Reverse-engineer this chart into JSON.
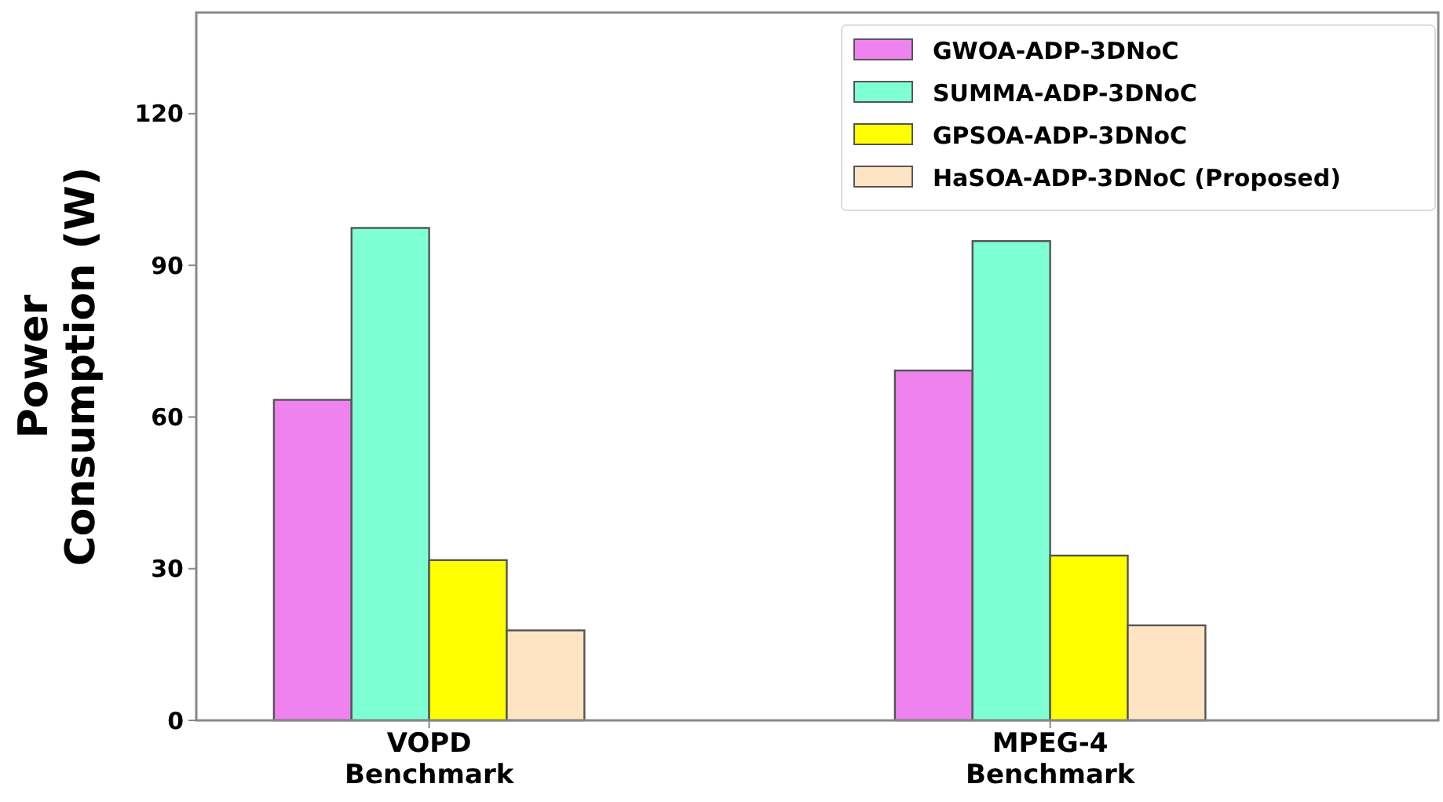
{
  "chart_data": {
    "type": "bar",
    "ylabel": "Power\nConsumption (W)",
    "categories": [
      "VOPD\nBenchmark",
      "MPEG-4\nBenchmark"
    ],
    "series": [
      {
        "name": "GWOA-ADP-3DNoC",
        "color": "#ee82ee",
        "values": [
          63.4,
          69.2
        ]
      },
      {
        "name": "SUMMA-ADP-3DNoC",
        "color": "#7fffd4",
        "values": [
          97.4,
          94.8
        ]
      },
      {
        "name": "GPSOA-ADP-3DNoC",
        "color": "#ffff00",
        "values": [
          31.7,
          32.6
        ]
      },
      {
        "name": "HaSOA-ADP-3DNoC (Proposed)",
        "color": "#ffe4c4",
        "values": [
          17.8,
          18.8
        ]
      }
    ],
    "ylim": [
      0,
      140
    ],
    "yticks": [
      0,
      30,
      60,
      90,
      120
    ],
    "grid": false,
    "legend": "top right"
  }
}
